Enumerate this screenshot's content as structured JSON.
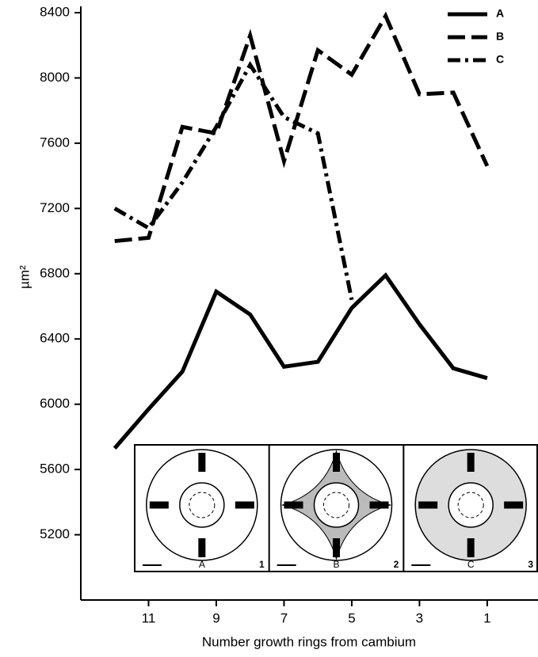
{
  "chart_data": {
    "type": "line",
    "x_label": "Number growth rings from cambium",
    "y_label": "µm²",
    "x": [
      12,
      11,
      10,
      9,
      8,
      7,
      6,
      5,
      4,
      3,
      2,
      1
    ],
    "series": [
      {
        "name": "A",
        "color": "#000000",
        "style": "solid",
        "values": [
          5730,
          5970,
          6200,
          6690,
          6550,
          6230,
          6260,
          6590,
          6790,
          6490,
          6220,
          6160
        ]
      },
      {
        "name": "B",
        "color": "#000000",
        "style": "dashed",
        "values": [
          7000,
          7020,
          7700,
          7660,
          8260,
          7490,
          8170,
          8020,
          8380,
          7900,
          7910,
          7460
        ]
      },
      {
        "name": "C",
        "color": "#000000",
        "style": "dashdot",
        "values": [
          7200,
          7080,
          7360,
          7700,
          8080,
          7760,
          7660,
          6640,
          null,
          null,
          null,
          null
        ]
      }
    ],
    "xlim": [
      13,
      -0.5
    ],
    "xticks": [
      11,
      9,
      7,
      5,
      3,
      1
    ],
    "ylim": [
      4800,
      8400
    ],
    "yticks": [
      5200,
      5600,
      6000,
      6400,
      6800,
      7200,
      7600,
      8000,
      8400
    ],
    "grid": false,
    "legend": "upper right",
    "insets": [
      {
        "label": "A",
        "number": "1"
      },
      {
        "label": "B",
        "number": "2"
      },
      {
        "label": "C",
        "number": "3"
      }
    ]
  }
}
